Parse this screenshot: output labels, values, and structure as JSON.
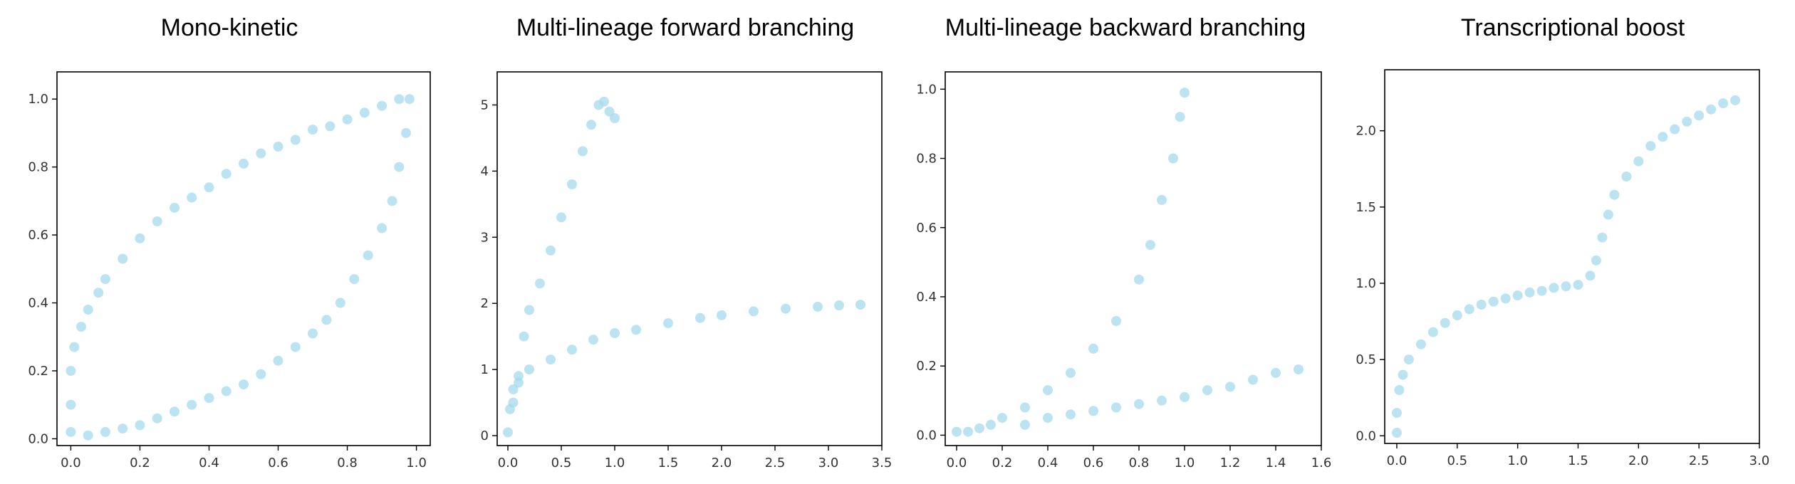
{
  "colors": {
    "point": "#a6d9ec",
    "frame": "#000000",
    "tick_text": "#333333",
    "background": "#ffffff"
  },
  "chart_data": [
    {
      "type": "scatter",
      "title": "Mono-kinetic",
      "xlabel": "",
      "ylabel": "",
      "xlim": [
        -0.04,
        1.04
      ],
      "ylim": [
        -0.02,
        1.08
      ],
      "xticks": [
        "0.0",
        "0.2",
        "0.4",
        "0.6",
        "0.8",
        "1.0"
      ],
      "yticks": [
        "0.0",
        "0.2",
        "0.4",
        "0.6",
        "0.8",
        "1.0"
      ],
      "grid": false,
      "legend": "none",
      "series": [
        {
          "points": [
            [
              0.0,
              0.02
            ],
            [
              0.0,
              0.1
            ],
            [
              0.0,
              0.2
            ],
            [
              0.01,
              0.27
            ],
            [
              0.03,
              0.33
            ],
            [
              0.05,
              0.38
            ],
            [
              0.08,
              0.43
            ],
            [
              0.1,
              0.47
            ],
            [
              0.15,
              0.53
            ],
            [
              0.2,
              0.59
            ],
            [
              0.25,
              0.64
            ],
            [
              0.3,
              0.68
            ],
            [
              0.35,
              0.71
            ],
            [
              0.4,
              0.74
            ],
            [
              0.45,
              0.78
            ],
            [
              0.5,
              0.81
            ],
            [
              0.55,
              0.84
            ],
            [
              0.6,
              0.86
            ],
            [
              0.65,
              0.88
            ],
            [
              0.7,
              0.91
            ],
            [
              0.75,
              0.92
            ],
            [
              0.8,
              0.94
            ],
            [
              0.85,
              0.96
            ],
            [
              0.9,
              0.98
            ],
            [
              0.95,
              1.0
            ],
            [
              0.98,
              1.0
            ],
            [
              0.97,
              0.9
            ],
            [
              0.95,
              0.8
            ],
            [
              0.93,
              0.7
            ],
            [
              0.9,
              0.62
            ],
            [
              0.86,
              0.54
            ],
            [
              0.82,
              0.47
            ],
            [
              0.78,
              0.4
            ],
            [
              0.74,
              0.35
            ],
            [
              0.7,
              0.31
            ],
            [
              0.65,
              0.27
            ],
            [
              0.6,
              0.23
            ],
            [
              0.55,
              0.19
            ],
            [
              0.5,
              0.16
            ],
            [
              0.45,
              0.14
            ],
            [
              0.4,
              0.12
            ],
            [
              0.35,
              0.1
            ],
            [
              0.3,
              0.08
            ],
            [
              0.25,
              0.06
            ],
            [
              0.2,
              0.04
            ],
            [
              0.15,
              0.03
            ],
            [
              0.1,
              0.02
            ],
            [
              0.05,
              0.01
            ]
          ]
        }
      ]
    },
    {
      "type": "scatter",
      "title": "Multi-lineage forward branching",
      "xlabel": "",
      "ylabel": "",
      "xlim": [
        -0.1,
        3.5
      ],
      "ylim": [
        -0.15,
        5.5
      ],
      "xticks": [
        "0.0",
        "0.5",
        "1.0",
        "1.5",
        "2.0",
        "2.5",
        "3.0",
        "3.5"
      ],
      "yticks": [
        "0",
        "1",
        "2",
        "3",
        "4",
        "5"
      ],
      "grid": false,
      "legend": "none",
      "series": [
        {
          "points": [
            [
              0.0,
              0.05
            ],
            [
              0.02,
              0.4
            ],
            [
              0.05,
              0.7
            ],
            [
              0.1,
              0.9
            ],
            [
              0.15,
              1.5
            ],
            [
              0.2,
              1.9
            ],
            [
              0.3,
              2.3
            ],
            [
              0.4,
              2.8
            ],
            [
              0.5,
              3.3
            ],
            [
              0.6,
              3.8
            ],
            [
              0.7,
              4.3
            ],
            [
              0.78,
              4.7
            ],
            [
              0.85,
              5.0
            ],
            [
              0.9,
              5.05
            ],
            [
              0.95,
              4.9
            ],
            [
              1.0,
              4.8
            ],
            [
              0.05,
              0.5
            ],
            [
              0.1,
              0.8
            ],
            [
              0.2,
              1.0
            ],
            [
              0.4,
              1.15
            ],
            [
              0.6,
              1.3
            ],
            [
              0.8,
              1.45
            ],
            [
              1.0,
              1.55
            ],
            [
              1.2,
              1.6
            ],
            [
              1.5,
              1.7
            ],
            [
              1.8,
              1.78
            ],
            [
              2.0,
              1.82
            ],
            [
              2.3,
              1.88
            ],
            [
              2.6,
              1.92
            ],
            [
              2.9,
              1.95
            ],
            [
              3.1,
              1.97
            ],
            [
              3.3,
              1.98
            ]
          ]
        }
      ]
    },
    {
      "type": "scatter",
      "title": "Multi-lineage backward branching",
      "xlabel": "",
      "ylabel": "",
      "xlim": [
        -0.05,
        1.6
      ],
      "ylim": [
        -0.03,
        1.05
      ],
      "xticks": [
        "0.0",
        "0.2",
        "0.4",
        "0.6",
        "0.8",
        "1.0",
        "1.2",
        "1.4",
        "1.6"
      ],
      "yticks": [
        "0.0",
        "0.2",
        "0.4",
        "0.6",
        "0.8",
        "1.0"
      ],
      "grid": false,
      "legend": "none",
      "series": [
        {
          "points": [
            [
              0.0,
              0.01
            ],
            [
              0.05,
              0.01
            ],
            [
              0.1,
              0.02
            ],
            [
              0.15,
              0.03
            ],
            [
              0.2,
              0.05
            ],
            [
              0.3,
              0.08
            ],
            [
              0.4,
              0.13
            ],
            [
              0.5,
              0.18
            ],
            [
              0.6,
              0.25
            ],
            [
              0.7,
              0.33
            ],
            [
              0.8,
              0.45
            ],
            [
              0.85,
              0.55
            ],
            [
              0.9,
              0.68
            ],
            [
              0.95,
              0.8
            ],
            [
              0.98,
              0.92
            ],
            [
              1.0,
              0.99
            ],
            [
              0.3,
              0.03
            ],
            [
              0.4,
              0.05
            ],
            [
              0.5,
              0.06
            ],
            [
              0.6,
              0.07
            ],
            [
              0.7,
              0.08
            ],
            [
              0.8,
              0.09
            ],
            [
              0.9,
              0.1
            ],
            [
              1.0,
              0.11
            ],
            [
              1.1,
              0.13
            ],
            [
              1.2,
              0.14
            ],
            [
              1.3,
              0.16
            ],
            [
              1.4,
              0.18
            ],
            [
              1.5,
              0.19
            ]
          ]
        }
      ]
    },
    {
      "type": "scatter",
      "title": "Transcriptional boost",
      "xlabel": "",
      "ylabel": "",
      "xlim": [
        -0.1,
        3.0
      ],
      "ylim": [
        -0.05,
        2.4
      ],
      "xticks": [
        "0.0",
        "0.5",
        "1.0",
        "1.5",
        "2.0",
        "2.5",
        "3.0"
      ],
      "yticks": [
        "0.0",
        "0.5",
        "1.0",
        "1.5",
        "2.0"
      ],
      "grid": false,
      "legend": "none",
      "series": [
        {
          "points": [
            [
              0.0,
              0.02
            ],
            [
              0.0,
              0.15
            ],
            [
              0.02,
              0.3
            ],
            [
              0.05,
              0.4
            ],
            [
              0.1,
              0.5
            ],
            [
              0.2,
              0.6
            ],
            [
              0.3,
              0.68
            ],
            [
              0.4,
              0.74
            ],
            [
              0.5,
              0.79
            ],
            [
              0.6,
              0.83
            ],
            [
              0.7,
              0.86
            ],
            [
              0.8,
              0.88
            ],
            [
              0.9,
              0.9
            ],
            [
              1.0,
              0.92
            ],
            [
              1.1,
              0.94
            ],
            [
              1.2,
              0.95
            ],
            [
              1.3,
              0.97
            ],
            [
              1.4,
              0.98
            ],
            [
              1.5,
              0.99
            ],
            [
              1.6,
              1.05
            ],
            [
              1.65,
              1.15
            ],
            [
              1.7,
              1.3
            ],
            [
              1.75,
              1.45
            ],
            [
              1.8,
              1.58
            ],
            [
              1.9,
              1.7
            ],
            [
              2.0,
              1.8
            ],
            [
              2.1,
              1.9
            ],
            [
              2.2,
              1.96
            ],
            [
              2.3,
              2.01
            ],
            [
              2.4,
              2.06
            ],
            [
              2.5,
              2.1
            ],
            [
              2.6,
              2.14
            ],
            [
              2.7,
              2.18
            ],
            [
              2.8,
              2.2
            ]
          ]
        }
      ]
    }
  ]
}
